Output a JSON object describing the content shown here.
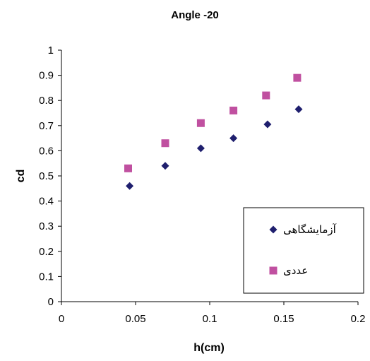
{
  "chart_data": {
    "type": "scatter",
    "title": "Angle -20",
    "xlabel": "h(cm)",
    "ylabel": "cd",
    "xlim": [
      0,
      0.2
    ],
    "ylim": [
      0,
      1
    ],
    "x_ticks": [
      "0",
      "0.05",
      "0.1",
      "0.15",
      "0.2"
    ],
    "y_ticks": [
      "0",
      "0.1",
      "0.2",
      "0.3",
      "0.4",
      "0.5",
      "0.6",
      "0.7",
      "0.8",
      "0.9",
      "1"
    ],
    "grid": false,
    "legend_position": "bottom-right",
    "series": [
      {
        "name": "آزمایشگاهی",
        "marker": "diamond",
        "color": "#1f1f6e",
        "points": [
          {
            "x": 0.046,
            "y": 0.46
          },
          {
            "x": 0.07,
            "y": 0.54
          },
          {
            "x": 0.094,
            "y": 0.61
          },
          {
            "x": 0.116,
            "y": 0.65
          },
          {
            "x": 0.139,
            "y": 0.705
          },
          {
            "x": 0.16,
            "y": 0.765
          }
        ]
      },
      {
        "name": "عددی",
        "marker": "square",
        "color": "#c050a0",
        "points": [
          {
            "x": 0.045,
            "y": 0.53
          },
          {
            "x": 0.07,
            "y": 0.63
          },
          {
            "x": 0.094,
            "y": 0.71
          },
          {
            "x": 0.116,
            "y": 0.76
          },
          {
            "x": 0.138,
            "y": 0.82
          },
          {
            "x": 0.159,
            "y": 0.89
          }
        ]
      }
    ]
  }
}
